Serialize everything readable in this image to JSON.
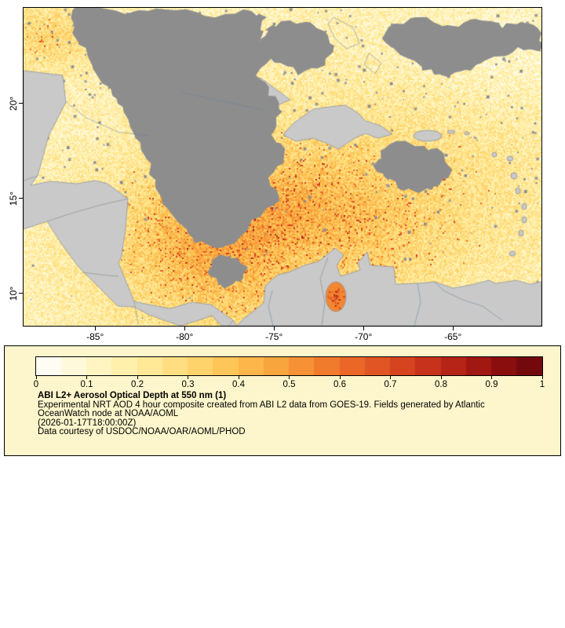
{
  "map": {
    "x_ticks": [
      {
        "value": -85,
        "label": "-85°"
      },
      {
        "value": -80,
        "label": "-80°"
      },
      {
        "value": -75,
        "label": "-75°"
      },
      {
        "value": -70,
        "label": "-70°"
      },
      {
        "value": -65,
        "label": "-65°"
      }
    ],
    "y_ticks": [
      {
        "value": 20,
        "label": "20°"
      },
      {
        "value": 15,
        "label": "15°"
      },
      {
        "value": 10,
        "label": "10°"
      }
    ],
    "lon_range": [
      -89.0,
      -60.1
    ],
    "lat_range": [
      8.3,
      25.0
    ]
  },
  "colorbar": {
    "ticks": [
      "0",
      "0.1",
      "0.2",
      "0.3",
      "0.4",
      "0.5",
      "0.6",
      "0.7",
      "0.8",
      "0.9",
      "1"
    ],
    "palette": [
      "#ffffff",
      "#fff7cf",
      "#ffeda0",
      "#ffd976",
      "#fdbf4e",
      "#f89c39",
      "#ee7029",
      "#dc4b21",
      "#c02a1a",
      "#97100f",
      "#67060b"
    ],
    "steps": 20
  },
  "legend": {
    "title": "ABI L2+ Aerosol Optical Depth at 550 nm (1)",
    "line1": "Experimental NRT AOD 4 hour composite created from ABI L2 data from GOES-19. Fields generated by Atlantic",
    "line2": "OceanWatch node at NOAA/AOML",
    "timestamp": "(2026-01-17T18:00:00Z)",
    "courtesy": "Data courtesy of USDOC/NOAA/OAR/AOML/PHOD",
    "background": "#fdf5cb"
  },
  "colors": {
    "land": "#c9c9c9",
    "cloud": "#8d8d8d",
    "coast": "#8f969c",
    "border": "#8b9097",
    "river": "#7f94a8"
  }
}
